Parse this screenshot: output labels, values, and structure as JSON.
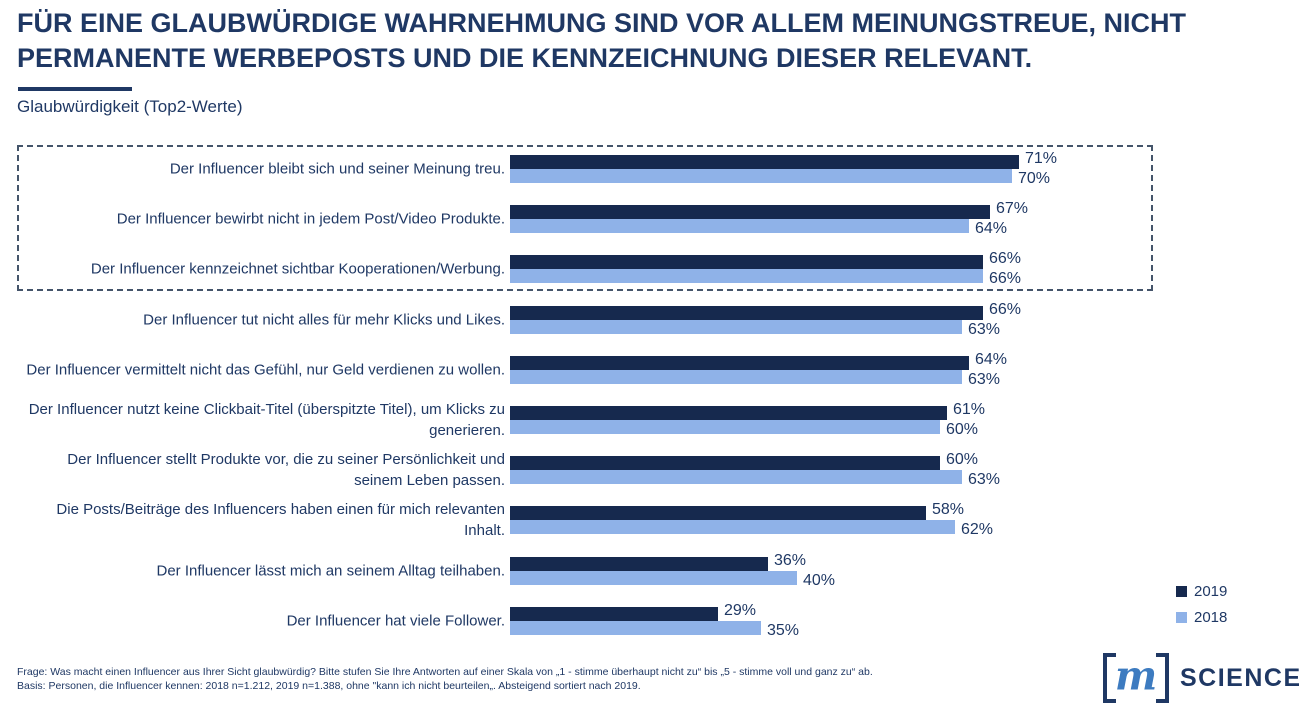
{
  "title": "FÜR EINE GLAUBWÜRDIGE WAHRNEHMUNG SIND VOR ALLEM MEINUNGSTREUE, NICHT PERMANENTE WERBEPOSTS UND DIE KENNZEICHNUNG DIESER RELEVANT.",
  "subtitle": "Glaubwürdigkeit (Top2-Werte)",
  "chart_data": {
    "type": "bar",
    "orientation": "horizontal",
    "unit": "%",
    "value_range": [
      0,
      100
    ],
    "grid": false,
    "axes_visible": false,
    "legend_position": "right-bottom",
    "highlighted_categories": [
      0,
      1,
      2
    ],
    "categories": [
      "Der Influencer bleibt sich und seiner Meinung treu.",
      "Der Influencer bewirbt nicht in jedem Post/Video Produkte.",
      "Der Influencer kennzeichnet sichtbar Kooperationen/Werbung.",
      "Der Influencer tut nicht alles für mehr Klicks und Likes.",
      "Der Influencer vermittelt nicht das Gefühl, nur Geld verdienen zu wollen.",
      "Der Influencer nutzt keine Clickbait-Titel (überspitzte Titel), um Klicks zu generieren.",
      "Der Influencer stellt Produkte vor, die zu seiner Persönlichkeit und seinem Leben passen.",
      "Die Posts/Beiträge des Influencers haben einen für mich relevanten Inhalt.",
      "Der Influencer lässt mich an seinem Alltag teilhaben.",
      "Der Influencer hat viele Follower."
    ],
    "series": [
      {
        "name": "2019",
        "color": "#16294E",
        "values": [
          71,
          67,
          66,
          66,
          64,
          61,
          60,
          58,
          36,
          29
        ]
      },
      {
        "name": "2018",
        "color": "#8FB2E8",
        "values": [
          70,
          64,
          66,
          63,
          63,
          60,
          63,
          62,
          40,
          35
        ]
      }
    ]
  },
  "legend": [
    {
      "label": "2019",
      "color": "#16294E"
    },
    {
      "label": "2018",
      "color": "#8FB2E8"
    }
  ],
  "footnotes": [
    "Frage: Was macht einen Influencer aus Ihrer Sicht glaubwürdig? Bitte stufen Sie Ihre Antworten auf einer Skala von „1 - stimme überhaupt nicht zu“ bis „5 - stimme voll und ganz zu“ ab.",
    "Basis: Personen, die Influencer kennen: 2018 n=1.212, 2019 n=1.388, ohne \"kann ich nicht beurteilen„. Absteigend sortiert nach 2019."
  ],
  "logo": {
    "letter": "m",
    "text": "SCIENCE"
  },
  "colors": {
    "title_text": "#1F3864",
    "bar_2019": "#16294E",
    "bar_2018": "#8FB2E8",
    "highlight_border": "#44546A",
    "logo_m": "#3D7BC0"
  }
}
